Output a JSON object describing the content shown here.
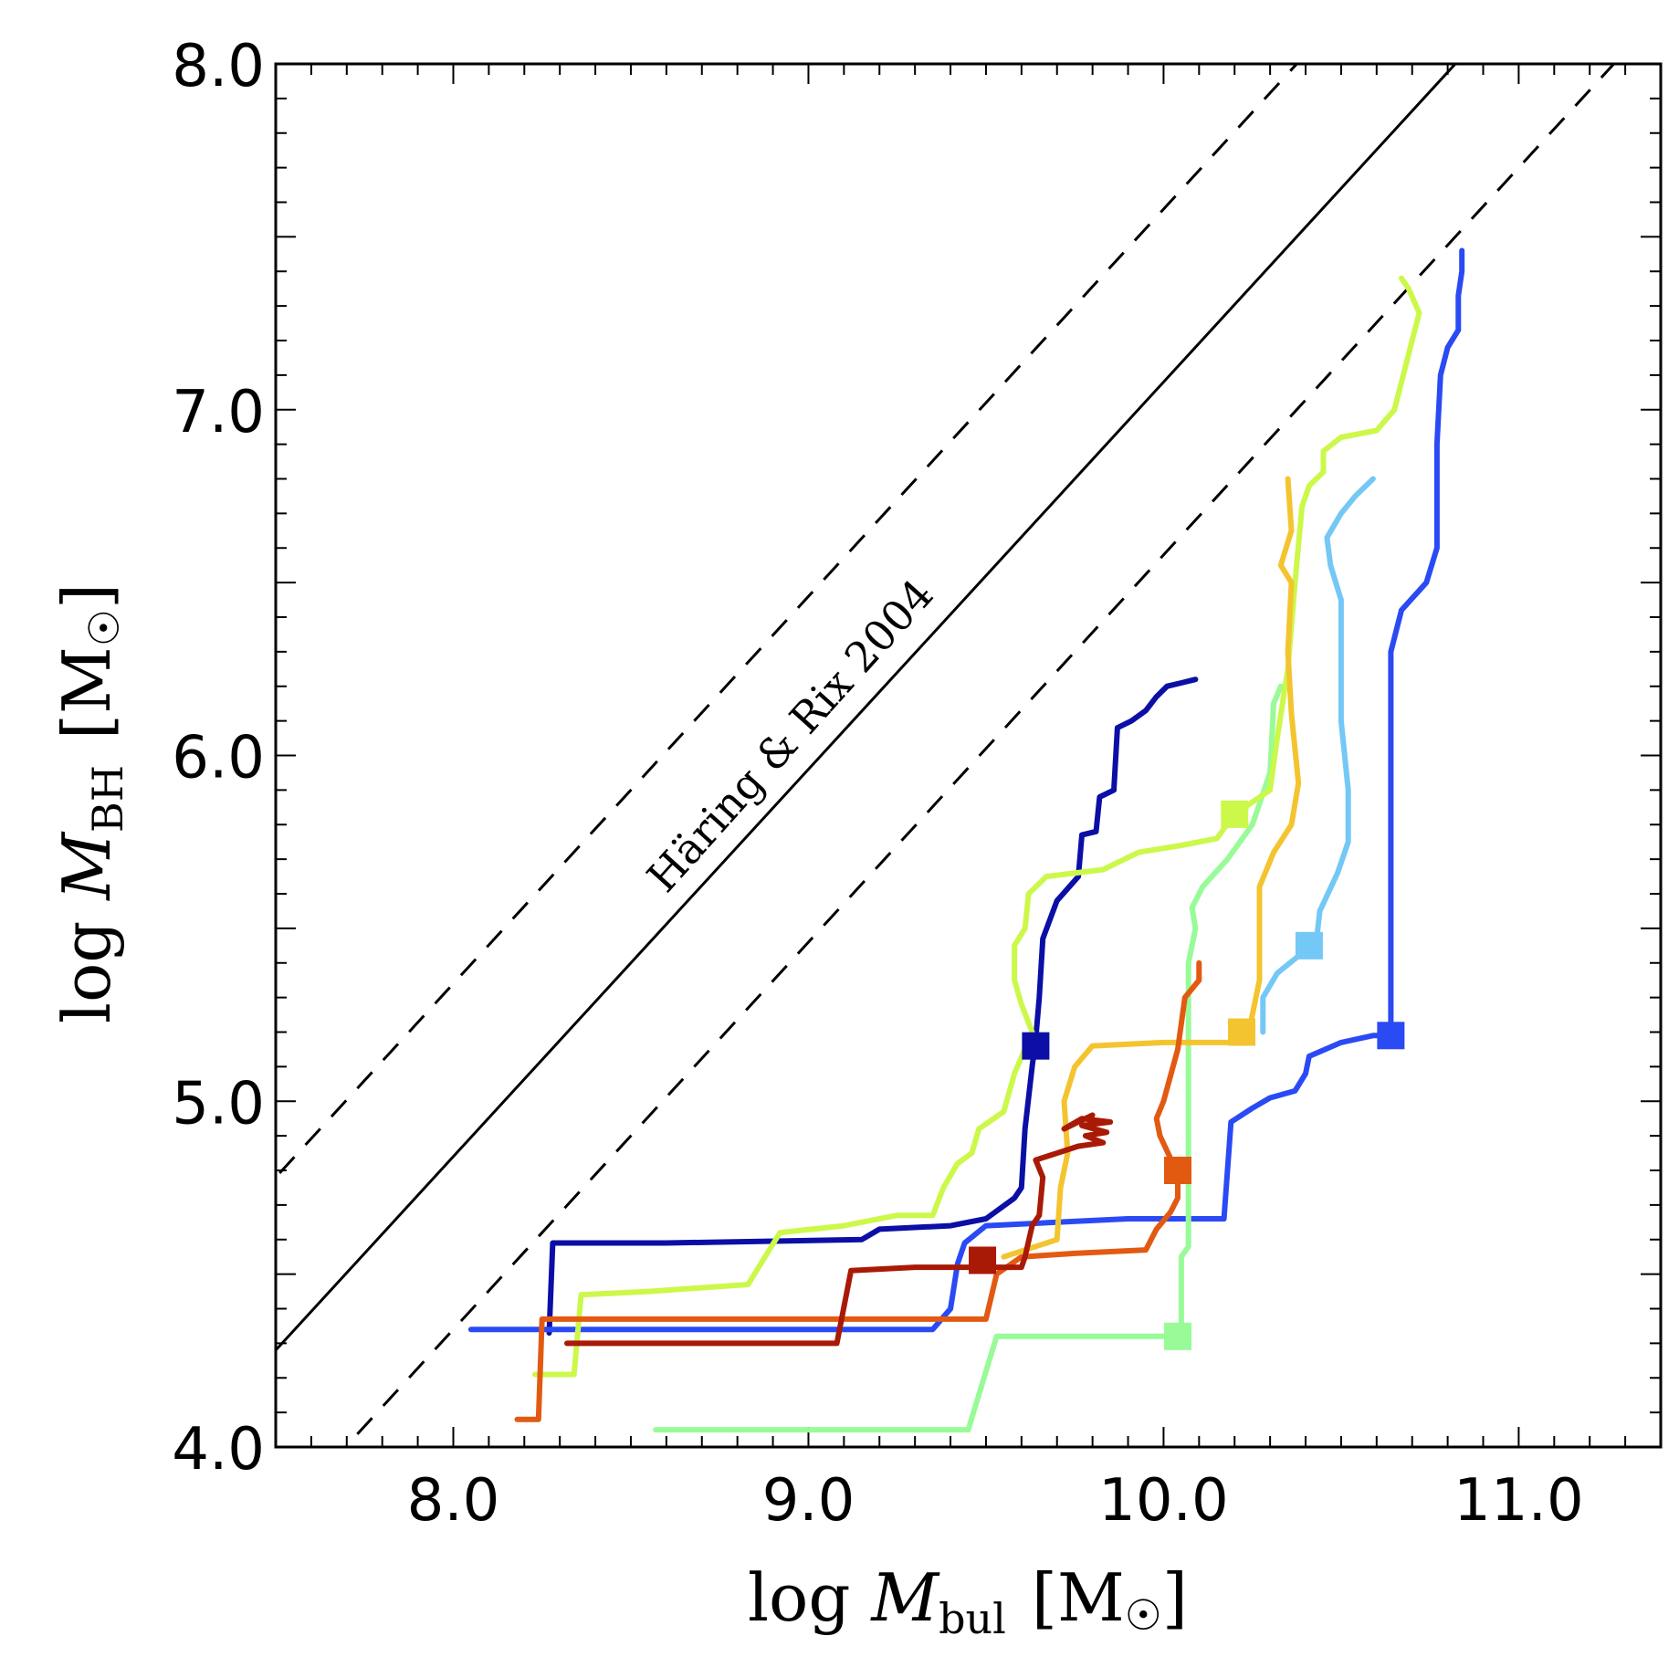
{
  "chart_data": {
    "type": "line",
    "xlabel": {
      "prefix": "log ",
      "var": "M",
      "sub": "bul",
      "unit": "[M",
      "sun": "☉",
      "close": "]"
    },
    "ylabel": {
      "prefix": "log ",
      "var": "M",
      "sub": "BH",
      "unit": "[M",
      "sun": "☉",
      "close": "]"
    },
    "xlim": [
      7.5,
      11.4
    ],
    "ylim": [
      4.0,
      8.0
    ],
    "x_ticks": [
      {
        "v": 8.0,
        "label": "8.0"
      },
      {
        "v": 9.0,
        "label": "9.0"
      },
      {
        "v": 10.0,
        "label": "10.0"
      },
      {
        "v": 11.0,
        "label": "11.0"
      }
    ],
    "y_ticks": [
      {
        "v": 4.0,
        "label": "4.0"
      },
      {
        "v": 5.0,
        "label": "5.0"
      },
      {
        "v": 6.0,
        "label": "6.0"
      },
      {
        "v": 7.0,
        "label": "7.0"
      },
      {
        "v": 8.0,
        "label": "8.0"
      }
    ],
    "annotation": "Häring & Rix 2004",
    "relation": {
      "slope": 1.12,
      "intercept_at_11": 8.2,
      "scatter_offset": 0.5
    },
    "series": [
      {
        "color": "#0b0fa6",
        "points": [
          [
            8.27,
            4.33
          ],
          [
            8.28,
            4.59
          ],
          [
            8.6,
            4.59
          ],
          [
            9.15,
            4.6
          ],
          [
            9.2,
            4.63
          ],
          [
            9.4,
            4.64
          ],
          [
            9.5,
            4.66
          ],
          [
            9.58,
            4.72
          ],
          [
            9.6,
            4.75
          ],
          [
            9.61,
            4.92
          ],
          [
            9.63,
            5.1
          ],
          [
            9.64,
            5.18
          ],
          [
            9.65,
            5.3
          ],
          [
            9.66,
            5.47
          ],
          [
            9.7,
            5.58
          ],
          [
            9.76,
            5.65
          ],
          [
            9.77,
            5.77
          ],
          [
            9.81,
            5.78
          ],
          [
            9.82,
            5.88
          ],
          [
            9.86,
            5.9
          ],
          [
            9.87,
            6.08
          ],
          [
            9.91,
            6.1
          ],
          [
            9.95,
            6.13
          ],
          [
            9.98,
            6.17
          ],
          [
            10.01,
            6.2
          ],
          [
            10.05,
            6.21
          ],
          [
            10.09,
            6.22
          ]
        ],
        "marker": [
          9.64,
          5.16
        ]
      },
      {
        "color": "#2a4af4",
        "points": [
          [
            8.05,
            4.34
          ],
          [
            9.35,
            4.34
          ],
          [
            9.4,
            4.4
          ],
          [
            9.42,
            4.53
          ],
          [
            9.44,
            4.59
          ],
          [
            9.5,
            4.64
          ],
          [
            9.7,
            4.65
          ],
          [
            9.9,
            4.66
          ],
          [
            10.17,
            4.66
          ],
          [
            10.19,
            4.94
          ],
          [
            10.25,
            4.98
          ],
          [
            10.3,
            5.01
          ],
          [
            10.37,
            5.03
          ],
          [
            10.4,
            5.08
          ],
          [
            10.41,
            5.13
          ],
          [
            10.5,
            5.17
          ],
          [
            10.59,
            5.19
          ],
          [
            10.64,
            5.19
          ],
          [
            10.64,
            6.3
          ],
          [
            10.67,
            6.42
          ],
          [
            10.74,
            6.5
          ],
          [
            10.77,
            6.6
          ],
          [
            10.77,
            6.9
          ],
          [
            10.78,
            7.1
          ],
          [
            10.8,
            7.18
          ],
          [
            10.83,
            7.23
          ],
          [
            10.83,
            7.33
          ],
          [
            10.84,
            7.4
          ],
          [
            10.84,
            7.46
          ]
        ],
        "marker": [
          10.64,
          5.19
        ]
      },
      {
        "color": "#74c8f5",
        "points": [
          [
            10.28,
            5.2
          ],
          [
            10.28,
            5.3
          ],
          [
            10.32,
            5.37
          ],
          [
            10.38,
            5.42
          ],
          [
            10.43,
            5.46
          ],
          [
            10.44,
            5.55
          ],
          [
            10.49,
            5.66
          ],
          [
            10.52,
            5.75
          ],
          [
            10.52,
            5.9
          ],
          [
            10.5,
            6.1
          ],
          [
            10.5,
            6.45
          ],
          [
            10.47,
            6.55
          ],
          [
            10.46,
            6.63
          ],
          [
            10.5,
            6.7
          ],
          [
            10.54,
            6.75
          ],
          [
            10.59,
            6.8
          ]
        ],
        "marker": [
          10.41,
          5.45
        ]
      },
      {
        "color": "#98fb98",
        "points": [
          [
            8.57,
            4.05
          ],
          [
            9.45,
            4.05
          ],
          [
            9.53,
            4.32
          ],
          [
            9.7,
            4.32
          ],
          [
            10.05,
            4.32
          ],
          [
            10.05,
            4.55
          ],
          [
            10.07,
            4.58
          ],
          [
            10.07,
            5.4
          ],
          [
            10.09,
            5.5
          ],
          [
            10.08,
            5.56
          ],
          [
            10.11,
            5.62
          ],
          [
            10.18,
            5.7
          ],
          [
            10.25,
            5.8
          ],
          [
            10.3,
            5.95
          ],
          [
            10.31,
            6.15
          ],
          [
            10.33,
            6.2
          ]
        ],
        "marker": [
          10.04,
          4.32
        ]
      },
      {
        "color": "#ccf84a",
        "points": [
          [
            8.23,
            4.21
          ],
          [
            8.34,
            4.21
          ],
          [
            8.36,
            4.44
          ],
          [
            8.55,
            4.45
          ],
          [
            8.83,
            4.47
          ],
          [
            8.92,
            4.62
          ],
          [
            9.1,
            4.64
          ],
          [
            9.25,
            4.67
          ],
          [
            9.35,
            4.67
          ],
          [
            9.38,
            4.75
          ],
          [
            9.42,
            4.82
          ],
          [
            9.46,
            4.85
          ],
          [
            9.48,
            4.92
          ],
          [
            9.55,
            4.97
          ],
          [
            9.58,
            5.08
          ],
          [
            9.63,
            5.2
          ],
          [
            9.6,
            5.28
          ],
          [
            9.58,
            5.35
          ],
          [
            9.58,
            5.45
          ],
          [
            9.61,
            5.5
          ],
          [
            9.62,
            5.6
          ],
          [
            9.67,
            5.65
          ],
          [
            9.83,
            5.67
          ],
          [
            9.93,
            5.72
          ],
          [
            10.05,
            5.74
          ],
          [
            10.15,
            5.76
          ],
          [
            10.2,
            5.83
          ],
          [
            10.3,
            5.9
          ],
          [
            10.32,
            6.05
          ],
          [
            10.35,
            6.25
          ],
          [
            10.37,
            6.5
          ],
          [
            10.39,
            6.72
          ],
          [
            10.41,
            6.78
          ],
          [
            10.45,
            6.82
          ],
          [
            10.45,
            6.88
          ],
          [
            10.5,
            6.92
          ],
          [
            10.6,
            6.94
          ],
          [
            10.65,
            7.0
          ],
          [
            10.7,
            7.2
          ],
          [
            10.72,
            7.28
          ],
          [
            10.69,
            7.35
          ],
          [
            10.67,
            7.38
          ]
        ],
        "marker": [
          10.2,
          5.83
        ]
      },
      {
        "color": "#f4c430",
        "points": [
          [
            9.55,
            4.55
          ],
          [
            9.7,
            4.6
          ],
          [
            9.71,
            4.75
          ],
          [
            9.73,
            4.85
          ],
          [
            9.72,
            5.0
          ],
          [
            9.75,
            5.1
          ],
          [
            9.8,
            5.16
          ],
          [
            10.0,
            5.17
          ],
          [
            10.2,
            5.17
          ],
          [
            10.24,
            5.2
          ],
          [
            10.27,
            5.35
          ],
          [
            10.27,
            5.62
          ],
          [
            10.31,
            5.72
          ],
          [
            10.36,
            5.8
          ],
          [
            10.38,
            5.92
          ],
          [
            10.36,
            6.12
          ],
          [
            10.35,
            6.3
          ],
          [
            10.36,
            6.5
          ],
          [
            10.33,
            6.55
          ],
          [
            10.36,
            6.65
          ],
          [
            10.35,
            6.8
          ]
        ],
        "marker": [
          10.22,
          5.2
        ]
      },
      {
        "color": "#e25a12",
        "points": [
          [
            8.18,
            4.08
          ],
          [
            8.24,
            4.08
          ],
          [
            8.25,
            4.37
          ],
          [
            8.5,
            4.37
          ],
          [
            9.4,
            4.37
          ],
          [
            9.5,
            4.37
          ],
          [
            9.53,
            4.5
          ],
          [
            9.6,
            4.55
          ],
          [
            9.75,
            4.56
          ],
          [
            9.95,
            4.57
          ],
          [
            9.98,
            4.63
          ],
          [
            10.02,
            4.68
          ],
          [
            10.04,
            4.72
          ],
          [
            10.04,
            4.79
          ],
          [
            9.99,
            4.9
          ],
          [
            9.98,
            4.95
          ],
          [
            10.0,
            5.0
          ],
          [
            10.04,
            5.15
          ],
          [
            10.06,
            5.3
          ],
          [
            10.1,
            5.35
          ],
          [
            10.1,
            5.4
          ]
        ],
        "marker": [
          10.04,
          4.8
        ]
      },
      {
        "color": "#a81a06",
        "points": [
          [
            8.32,
            4.3
          ],
          [
            9.08,
            4.3
          ],
          [
            9.12,
            4.51
          ],
          [
            9.3,
            4.52
          ],
          [
            9.6,
            4.52
          ],
          [
            9.61,
            4.55
          ],
          [
            9.63,
            4.64
          ],
          [
            9.65,
            4.67
          ],
          [
            9.66,
            4.78
          ],
          [
            9.64,
            4.83
          ],
          [
            9.7,
            4.85
          ],
          [
            9.76,
            4.87
          ],
          [
            9.83,
            4.88
          ],
          [
            9.78,
            4.9
          ],
          [
            9.84,
            4.91
          ],
          [
            9.77,
            4.93
          ],
          [
            9.85,
            4.94
          ],
          [
            9.77,
            4.95
          ],
          [
            9.72,
            4.92
          ],
          [
            9.8,
            4.96
          ]
        ],
        "marker": [
          9.49,
          4.54
        ]
      }
    ]
  }
}
